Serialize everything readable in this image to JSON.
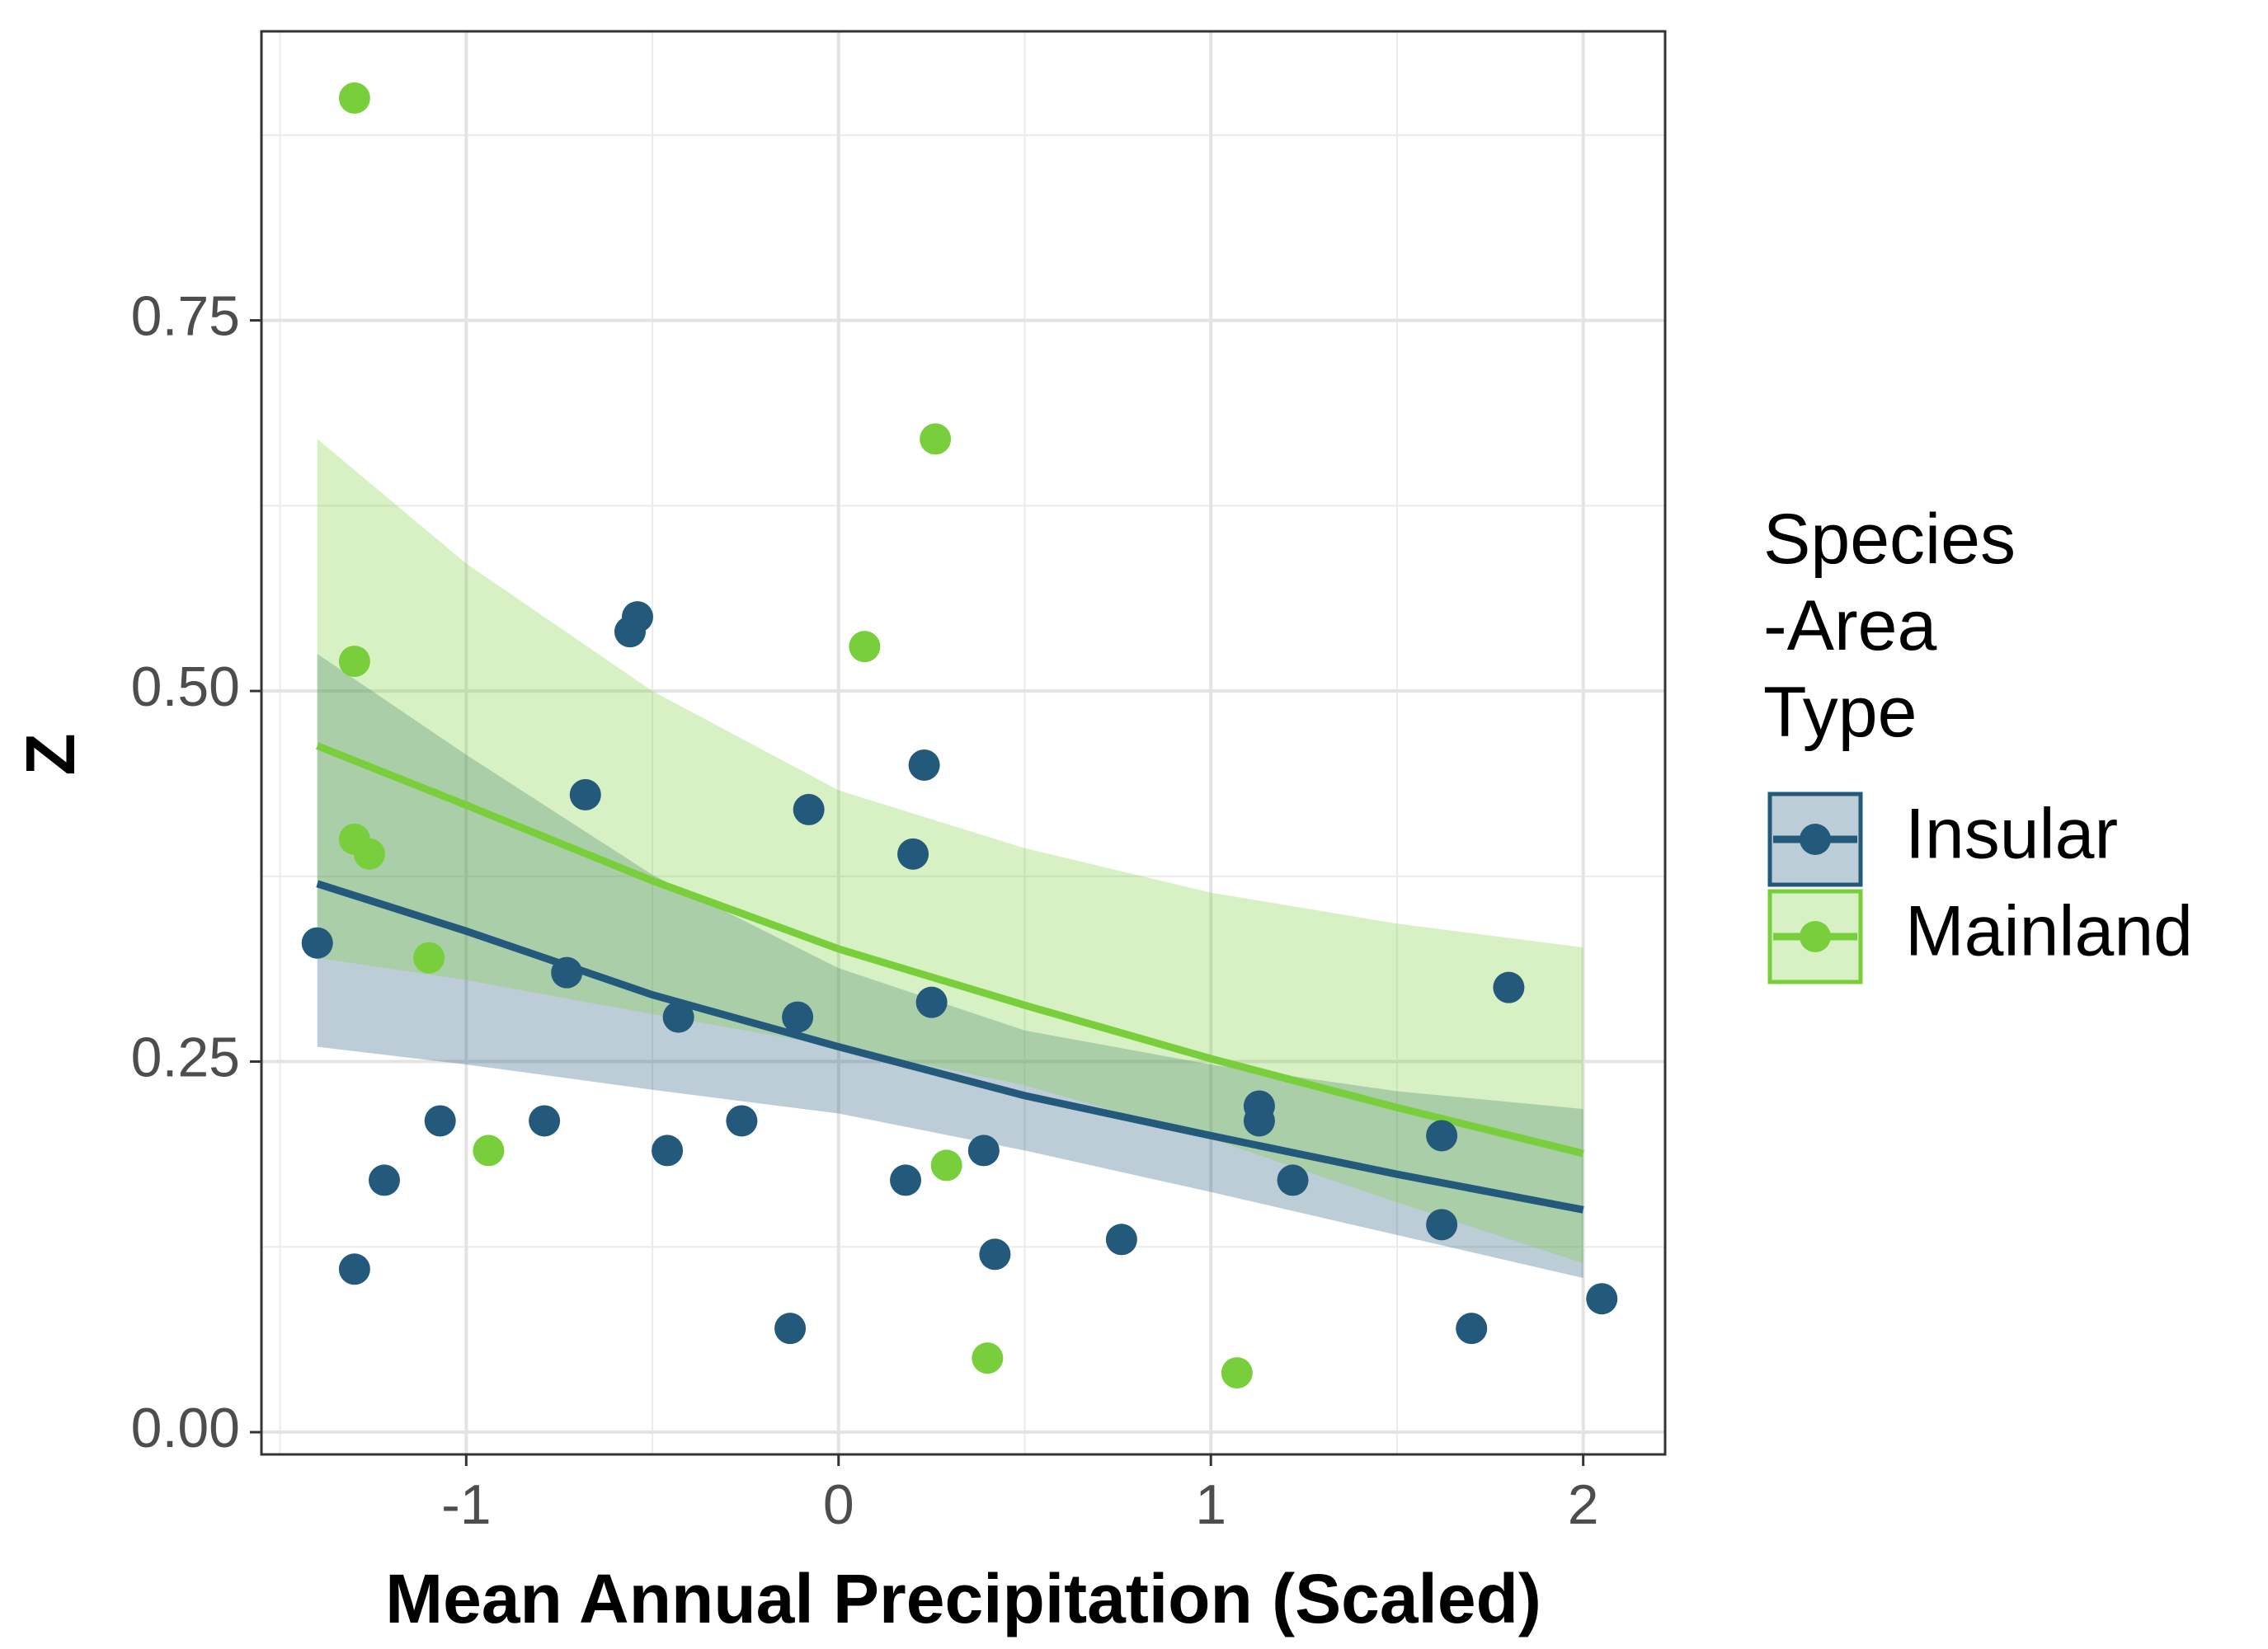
{
  "chart_data": {
    "type": "scatter",
    "xlabel": "Mean Annual Precipitation (Scaled)",
    "ylabel": "Z",
    "xlim": [
      -1.55,
      2.22
    ],
    "ylim": [
      -0.015,
      0.945
    ],
    "x_ticks": [
      -1,
      0,
      1,
      2
    ],
    "x_tick_labels": [
      "-1",
      "0",
      "1",
      "2"
    ],
    "y_ticks": [
      0.0,
      0.25,
      0.5,
      0.75
    ],
    "y_tick_labels": [
      "0.00",
      "0.25",
      "0.50",
      "0.75"
    ],
    "grid": true,
    "legend": {
      "title_lines": [
        "Species",
        "-Area",
        "Type"
      ],
      "position": "right"
    },
    "series": [
      {
        "name": "Insular",
        "color": "#23597a",
        "points": [
          [
            -1.4,
            0.33
          ],
          [
            -1.3,
            0.11
          ],
          [
            -1.22,
            0.17
          ],
          [
            -1.07,
            0.21
          ],
          [
            -0.79,
            0.21
          ],
          [
            -0.73,
            0.31
          ],
          [
            -0.68,
            0.43
          ],
          [
            -0.56,
            0.54
          ],
          [
            -0.54,
            0.55
          ],
          [
            -0.46,
            0.19
          ],
          [
            -0.43,
            0.28
          ],
          [
            -0.26,
            0.21
          ],
          [
            -0.13,
            0.07
          ],
          [
            -0.11,
            0.28
          ],
          [
            -0.08,
            0.42
          ],
          [
            0.18,
            0.17
          ],
          [
            0.2,
            0.39
          ],
          [
            0.23,
            0.45
          ],
          [
            0.25,
            0.29
          ],
          [
            0.39,
            0.19
          ],
          [
            0.42,
            0.12
          ],
          [
            0.76,
            0.13
          ],
          [
            1.13,
            0.22
          ],
          [
            1.13,
            0.21
          ],
          [
            1.22,
            0.17
          ],
          [
            1.62,
            0.2
          ],
          [
            1.62,
            0.14
          ],
          [
            1.7,
            0.07
          ],
          [
            1.8,
            0.3
          ],
          [
            2.05,
            0.09
          ]
        ],
        "fit": {
          "x": [
            -1.4,
            -1.0,
            -0.5,
            0.0,
            0.5,
            1.0,
            1.5,
            2.0
          ],
          "y": [
            0.37,
            0.338,
            0.295,
            0.26,
            0.227,
            0.2,
            0.174,
            0.15
          ],
          "ci_lower": [
            0.26,
            0.248,
            0.231,
            0.215,
            0.19,
            0.162,
            0.133,
            0.104
          ],
          "ci_upper": [
            0.525,
            0.457,
            0.376,
            0.313,
            0.271,
            0.248,
            0.23,
            0.218
          ]
        }
      },
      {
        "name": "Mainland",
        "color": "#79cf3b",
        "points": [
          [
            -1.3,
            0.9
          ],
          [
            -1.3,
            0.52
          ],
          [
            -1.3,
            0.4
          ],
          [
            -1.26,
            0.39
          ],
          [
            -1.1,
            0.32
          ],
          [
            -0.94,
            0.19
          ],
          [
            0.07,
            0.53
          ],
          [
            0.26,
            0.67
          ],
          [
            0.29,
            0.18
          ],
          [
            0.4,
            0.05
          ],
          [
            1.07,
            0.04
          ]
        ],
        "fit": {
          "x": [
            -1.4,
            -1.0,
            -0.5,
            0.0,
            0.5,
            1.0,
            1.5,
            2.0
          ],
          "y": [
            0.463,
            0.423,
            0.372,
            0.326,
            0.288,
            0.252,
            0.219,
            0.188
          ],
          "ci_lower": [
            0.32,
            0.305,
            0.282,
            0.26,
            0.234,
            0.198,
            0.155,
            0.114
          ],
          "ci_upper": [
            0.67,
            0.586,
            0.5,
            0.433,
            0.394,
            0.364,
            0.343,
            0.327
          ]
        }
      }
    ]
  }
}
